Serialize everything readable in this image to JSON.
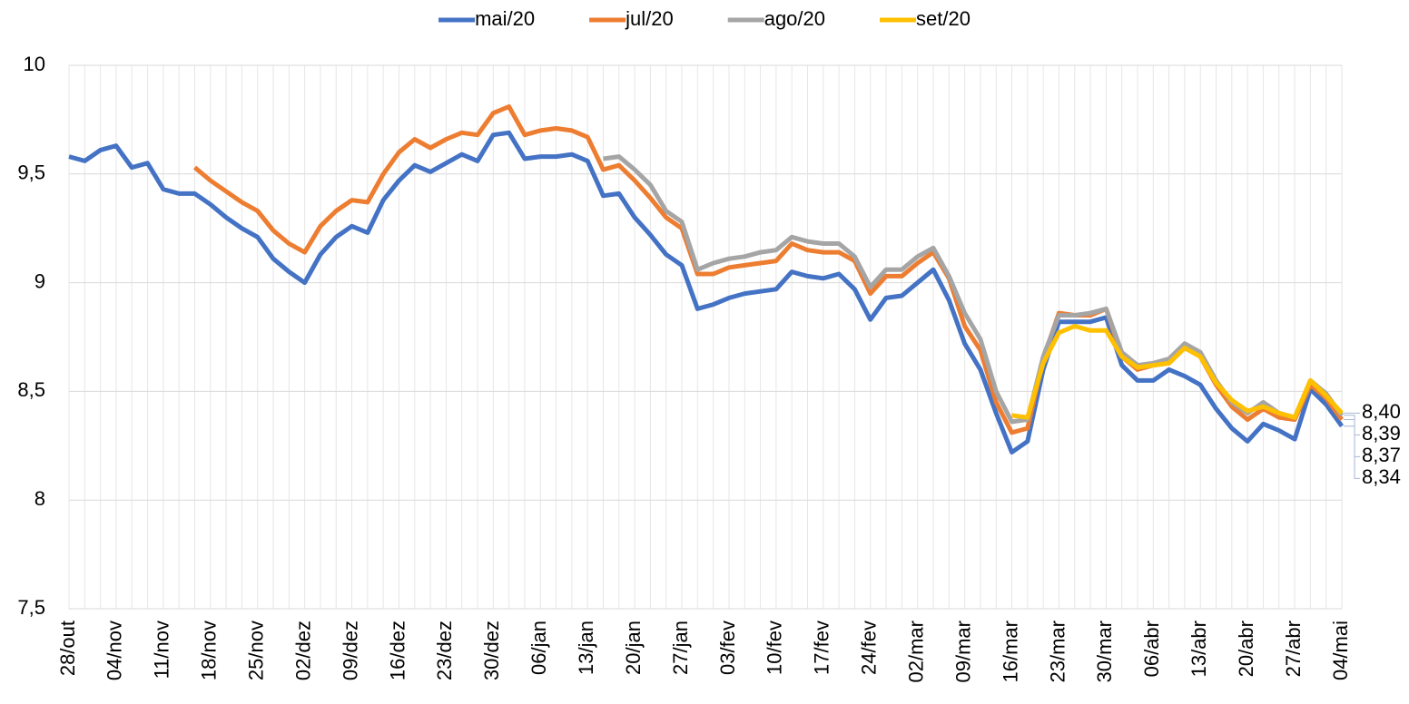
{
  "chart_data": {
    "type": "line",
    "categories": [
      "28/out",
      null,
      null,
      "04/nov",
      null,
      null,
      "11/nov",
      null,
      null,
      "18/nov",
      null,
      null,
      "25/nov",
      null,
      null,
      "02/dez",
      null,
      null,
      "09/dez",
      null,
      null,
      "16/dez",
      null,
      null,
      "23/dez",
      null,
      null,
      "30/dez",
      null,
      null,
      "06/jan",
      null,
      null,
      "13/jan",
      null,
      null,
      "20/jan",
      null,
      null,
      "27/jan",
      null,
      null,
      "03/fev",
      null,
      null,
      "10/fev",
      null,
      null,
      "17/fev",
      null,
      null,
      "24/fev",
      null,
      null,
      "02/mar",
      null,
      null,
      "09/mar",
      null,
      null,
      "16/mar",
      null,
      null,
      "23/mar",
      null,
      null,
      "30/mar",
      null,
      null,
      "06/abr",
      null,
      null,
      "13/abr",
      null,
      null,
      "20/abr",
      null,
      null,
      "27/abr",
      null,
      null,
      "04/mai"
    ],
    "series": [
      {
        "name": "mai/20",
        "color": "#4472c4",
        "values": [
          9.58,
          9.56,
          9.61,
          9.63,
          9.53,
          9.55,
          9.43,
          9.41,
          9.41,
          9.36,
          9.3,
          9.25,
          9.21,
          9.11,
          9.05,
          9.0,
          9.13,
          9.21,
          9.26,
          9.23,
          9.38,
          9.47,
          9.54,
          9.51,
          9.55,
          9.59,
          9.56,
          9.68,
          9.69,
          9.57,
          9.58,
          9.58,
          9.59,
          9.56,
          9.4,
          9.41,
          9.3,
          9.22,
          9.13,
          9.08,
          8.88,
          8.9,
          8.93,
          8.95,
          8.96,
          8.97,
          9.05,
          9.03,
          9.02,
          9.04,
          8.97,
          8.83,
          8.93,
          8.94,
          9.0,
          9.06,
          8.92,
          8.72,
          8.6,
          8.4,
          8.22,
          8.27,
          8.6,
          8.82,
          8.82,
          8.82,
          8.84,
          8.62,
          8.55,
          8.55,
          8.6,
          8.57,
          8.53,
          8.42,
          8.33,
          8.27,
          8.35,
          8.32,
          8.28,
          8.51,
          8.44,
          8.34
        ],
        "value_labels": [
          null,
          null,
          null,
          null,
          null,
          null,
          null,
          null,
          null,
          null,
          null,
          null,
          null,
          null,
          null,
          null,
          null,
          null,
          null,
          null,
          null,
          null,
          null,
          null,
          null,
          null,
          null,
          null,
          null,
          null,
          null,
          null,
          null,
          null,
          null,
          null,
          null,
          null,
          null,
          null,
          null,
          null,
          null,
          null,
          null,
          null,
          null,
          null,
          null,
          null,
          null,
          null,
          null,
          null,
          null,
          null,
          null,
          null,
          null,
          null,
          null,
          null,
          null,
          null,
          null,
          null,
          null,
          null,
          null,
          null,
          null,
          null,
          null,
          null,
          null,
          null,
          null,
          null,
          null,
          null,
          null,
          "8,34"
        ]
      },
      {
        "name": "jul/20",
        "color": "#ed7d31",
        "values": [
          null,
          null,
          null,
          null,
          null,
          null,
          null,
          null,
          9.53,
          9.47,
          9.42,
          9.37,
          9.33,
          9.24,
          9.18,
          9.14,
          9.26,
          9.33,
          9.38,
          9.37,
          9.5,
          9.6,
          9.66,
          9.62,
          9.66,
          9.69,
          9.68,
          9.78,
          9.81,
          9.68,
          9.7,
          9.71,
          9.7,
          9.67,
          9.52,
          9.54,
          9.47,
          9.39,
          9.3,
          9.25,
          9.04,
          9.04,
          9.07,
          9.08,
          9.09,
          9.1,
          9.18,
          9.15,
          9.14,
          9.14,
          9.1,
          8.95,
          9.03,
          9.03,
          9.09,
          9.14,
          9.02,
          8.8,
          8.69,
          8.45,
          8.31,
          8.33,
          8.65,
          8.86,
          8.85,
          8.85,
          8.88,
          8.66,
          8.6,
          8.62,
          8.63,
          8.7,
          8.66,
          8.53,
          8.43,
          8.37,
          8.42,
          8.38,
          8.37,
          8.53,
          8.47,
          8.37
        ],
        "value_labels": [
          null,
          null,
          null,
          null,
          null,
          null,
          null,
          null,
          null,
          null,
          null,
          null,
          null,
          null,
          null,
          null,
          null,
          null,
          null,
          null,
          null,
          null,
          null,
          null,
          null,
          null,
          null,
          null,
          null,
          null,
          null,
          null,
          null,
          null,
          null,
          null,
          null,
          null,
          null,
          null,
          null,
          null,
          null,
          null,
          null,
          null,
          null,
          null,
          null,
          null,
          null,
          null,
          null,
          null,
          null,
          null,
          null,
          null,
          null,
          null,
          null,
          null,
          null,
          null,
          null,
          null,
          null,
          null,
          null,
          null,
          null,
          null,
          null,
          null,
          null,
          null,
          null,
          null,
          null,
          null,
          null,
          "8,37"
        ]
      },
      {
        "name": "ago/20",
        "color": "#a5a5a5",
        "values": [
          null,
          null,
          null,
          null,
          null,
          null,
          null,
          null,
          null,
          null,
          null,
          null,
          null,
          null,
          null,
          null,
          null,
          null,
          null,
          null,
          null,
          null,
          null,
          null,
          null,
          null,
          null,
          null,
          null,
          null,
          null,
          null,
          null,
          null,
          9.57,
          9.58,
          9.52,
          9.45,
          9.33,
          9.28,
          9.06,
          9.09,
          9.11,
          9.12,
          9.14,
          9.15,
          9.21,
          9.19,
          9.18,
          9.18,
          9.12,
          8.98,
          9.06,
          9.06,
          9.12,
          9.16,
          9.03,
          8.86,
          8.74,
          8.5,
          8.36,
          8.37,
          8.66,
          8.85,
          8.85,
          8.86,
          8.88,
          8.68,
          8.62,
          8.63,
          8.65,
          8.72,
          8.68,
          8.55,
          8.45,
          8.4,
          8.45,
          8.4,
          8.38,
          8.55,
          8.49,
          8.39
        ],
        "value_labels": [
          null,
          null,
          null,
          null,
          null,
          null,
          null,
          null,
          null,
          null,
          null,
          null,
          null,
          null,
          null,
          null,
          null,
          null,
          null,
          null,
          null,
          null,
          null,
          null,
          null,
          null,
          null,
          null,
          null,
          null,
          null,
          null,
          null,
          null,
          null,
          null,
          null,
          null,
          null,
          null,
          null,
          null,
          null,
          null,
          null,
          null,
          null,
          null,
          null,
          null,
          null,
          null,
          null,
          null,
          null,
          null,
          null,
          null,
          null,
          null,
          null,
          null,
          null,
          null,
          null,
          null,
          null,
          null,
          null,
          null,
          null,
          null,
          null,
          null,
          null,
          null,
          null,
          null,
          null,
          null,
          null,
          "8,39"
        ]
      },
      {
        "name": "set/20",
        "color": "#ffc000",
        "values": [
          null,
          null,
          null,
          null,
          null,
          null,
          null,
          null,
          null,
          null,
          null,
          null,
          null,
          null,
          null,
          null,
          null,
          null,
          null,
          null,
          null,
          null,
          null,
          null,
          null,
          null,
          null,
          null,
          null,
          null,
          null,
          null,
          null,
          null,
          null,
          null,
          null,
          null,
          null,
          null,
          null,
          null,
          null,
          null,
          null,
          null,
          null,
          null,
          null,
          null,
          null,
          null,
          null,
          null,
          null,
          null,
          null,
          null,
          null,
          null,
          8.39,
          8.38,
          8.63,
          8.77,
          8.8,
          8.78,
          8.78,
          8.66,
          8.61,
          8.62,
          8.63,
          8.7,
          8.66,
          8.54,
          8.46,
          8.41,
          8.43,
          8.4,
          8.38,
          8.55,
          8.48,
          8.4
        ],
        "value_labels": [
          null,
          null,
          null,
          null,
          null,
          null,
          null,
          null,
          null,
          null,
          null,
          null,
          null,
          null,
          null,
          null,
          null,
          null,
          null,
          null,
          null,
          null,
          null,
          null,
          null,
          null,
          null,
          null,
          null,
          null,
          null,
          null,
          null,
          null,
          null,
          null,
          null,
          null,
          null,
          null,
          null,
          null,
          null,
          null,
          null,
          null,
          null,
          null,
          null,
          null,
          null,
          null,
          null,
          null,
          null,
          null,
          null,
          null,
          null,
          null,
          null,
          null,
          null,
          null,
          null,
          null,
          null,
          null,
          null,
          null,
          null,
          null,
          null,
          null,
          null,
          null,
          null,
          null,
          null,
          null,
          null,
          "8,40"
        ]
      }
    ],
    "ylim": [
      7.5,
      10
    ],
    "yticks": [
      {
        "value": 7.5,
        "label": "7,5"
      },
      8,
      {
        "value": 8.5,
        "label": "8,5"
      },
      9,
      {
        "value": 9.5,
        "label": "9,5"
      },
      10
    ],
    "grid": true,
    "legend": "top"
  }
}
